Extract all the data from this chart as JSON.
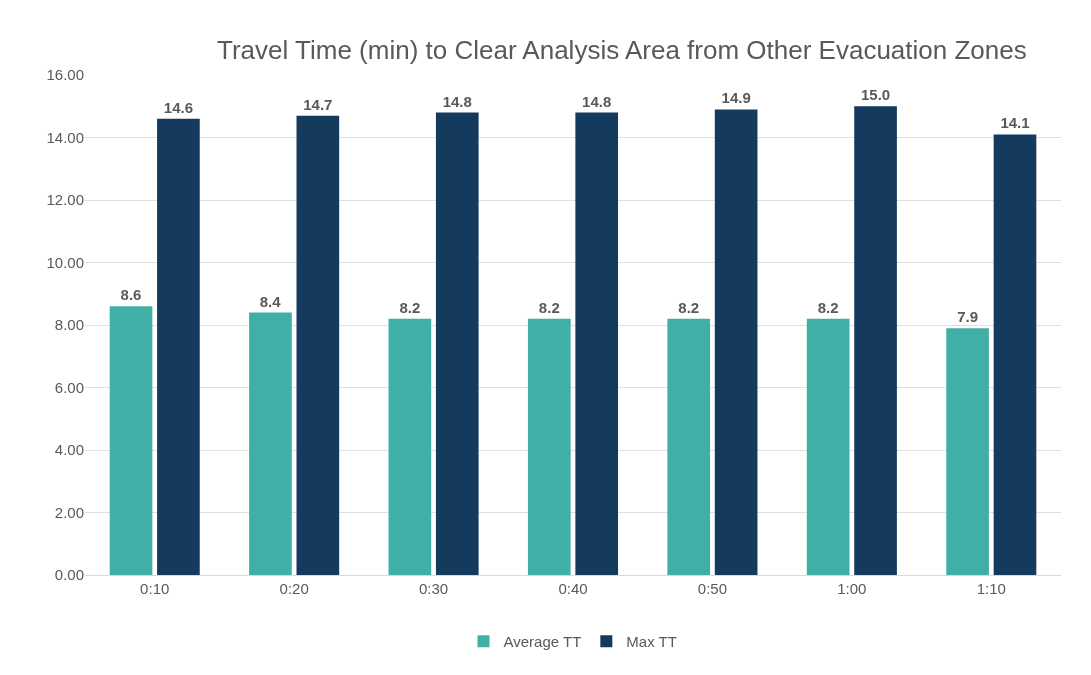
{
  "chart_data": {
    "type": "bar",
    "title": "Travel Time (min) to Clear Analysis Area from Other Evacuation Zones",
    "categories": [
      "0:10",
      "0:20",
      "0:30",
      "0:40",
      "0:50",
      "1:00",
      "1:10"
    ],
    "series": [
      {
        "name": "Average TT",
        "color": "#40b0a6",
        "values": [
          8.6,
          8.4,
          8.2,
          8.2,
          8.2,
          8.2,
          7.9
        ],
        "value_labels": [
          "8.6",
          "8.4",
          "8.2",
          "8.2",
          "8.2",
          "8.2",
          "7.9"
        ]
      },
      {
        "name": "Max TT",
        "color": "#143a5e",
        "values": [
          14.6,
          14.7,
          14.8,
          14.8,
          14.9,
          15.0,
          14.1
        ],
        "value_labels": [
          "14.6",
          "14.7",
          "14.8",
          "14.8",
          "14.9",
          "15.0",
          "14.1"
        ]
      }
    ],
    "ylim": [
      0,
      16
    ],
    "yticks": [
      {
        "value": 0,
        "label": "0.00"
      },
      {
        "value": 2,
        "label": "2.00"
      },
      {
        "value": 4,
        "label": "4.00"
      },
      {
        "value": 6,
        "label": "6.00"
      },
      {
        "value": 8,
        "label": "8.00"
      },
      {
        "value": 10,
        "label": "10.00"
      },
      {
        "value": 12,
        "label": "12.00"
      },
      {
        "value": 14,
        "label": "14.00"
      },
      {
        "value": 16,
        "label": "16.00"
      }
    ],
    "grid": "y",
    "legend": "bottom"
  }
}
